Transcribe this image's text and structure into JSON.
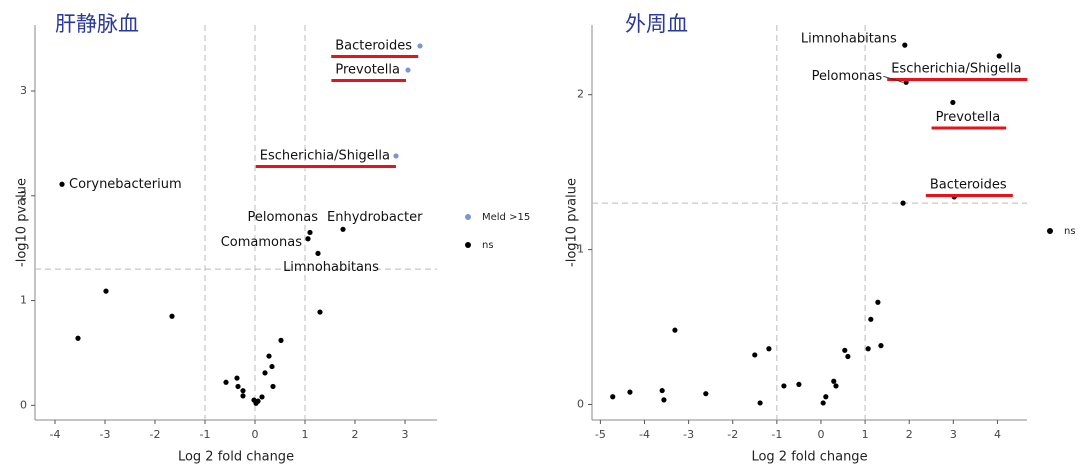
{
  "chart_data": [
    {
      "type": "scatter",
      "title": "肝静脉血",
      "x_label": "Log 2 fold change",
      "y_label": "-log10 pvalue",
      "xlim": [
        -4.4,
        3.64
      ],
      "ylim": [
        -0.14,
        3.63
      ],
      "xticks": [
        -4,
        -3,
        -2,
        -1,
        0,
        1,
        2,
        3
      ],
      "yticks": [
        0,
        1,
        2,
        3
      ],
      "vlines": [
        -1,
        0,
        1
      ],
      "hline": 1.3,
      "series": [
        {
          "name": "Meld >15",
          "color": "#7b96d4",
          "x": [
            3.3,
            3.06,
            2.82
          ],
          "values": [
            3.43,
            3.2,
            2.38
          ],
          "labels": [
            "Bacteroides",
            "Prevotella",
            "Escherichia/Shigella"
          ]
        },
        {
          "name": "ns",
          "color": "#000000",
          "x": [
            -3.86,
            1.1,
            1.06,
            1.76,
            1.26,
            -2.98,
            -3.54,
            -1.66,
            1.3,
            0.52,
            0.28,
            0.34,
            0.2,
            0.36,
            -0.36,
            -0.58,
            -0.34,
            -0.24,
            -0.24,
            0.02,
            0.14,
            -0.02,
            0.06
          ],
          "values": [
            2.11,
            1.65,
            1.59,
            1.68,
            1.45,
            1.09,
            0.64,
            0.85,
            0.89,
            0.62,
            0.47,
            0.37,
            0.31,
            0.18,
            0.26,
            0.22,
            0.18,
            0.14,
            0.09,
            0.02,
            0.08,
            0.05,
            0.04
          ],
          "labels": [
            "Corynebacterium",
            "Pelomonas",
            "Comamonas",
            "Enhydrobacter",
            "Limnohabitans",
            null,
            null,
            null,
            null,
            null,
            null,
            null,
            null,
            null,
            null,
            null,
            null,
            null,
            null,
            null,
            null,
            null,
            null
          ]
        }
      ]
    },
    {
      "type": "scatter",
      "title": "外周血",
      "x_label": "Log 2 fold change",
      "y_label": "-log10 pvalue",
      "xlim": [
        -5.19,
        4.67
      ],
      "ylim": [
        -0.1,
        2.45
      ],
      "xticks": [
        -5,
        -4,
        -3,
        -2,
        -1,
        0,
        1,
        2,
        3,
        4
      ],
      "yticks": [
        0,
        1,
        2
      ],
      "vlines": [
        -1,
        1
      ],
      "hline": 1.3,
      "series": [
        {
          "name": "ns",
          "color": "#000000",
          "x": [
            1.9,
            4.04,
            1.93,
            2.99,
            3.02,
            1.86,
            -3.31,
            -1.18,
            -1.5,
            -0.5,
            -0.84,
            1.29,
            1.13,
            1.36,
            1.07,
            0.54,
            0.61,
            0.29,
            0.34,
            0.11,
            0.05,
            -1.38,
            -3.6,
            -3.56,
            -2.61,
            -4.33,
            -4.72
          ],
          "values": [
            2.32,
            2.25,
            2.08,
            1.95,
            1.34,
            1.3,
            0.48,
            0.36,
            0.32,
            0.13,
            0.12,
            0.66,
            0.55,
            0.38,
            0.36,
            0.35,
            0.31,
            0.15,
            0.12,
            0.05,
            0.01,
            0.01,
            0.09,
            0.03,
            0.07,
            0.08,
            0.05
          ],
          "labels": [
            "Limnohabitans",
            "Escherichia/Shigella",
            "Pelomonas",
            "Prevotella",
            "Bacteroides",
            null,
            null,
            null,
            null,
            null,
            null,
            null,
            null,
            null,
            null,
            null,
            null,
            null,
            null,
            null,
            null,
            null,
            null,
            null,
            null,
            null,
            null
          ]
        }
      ]
    }
  ]
}
